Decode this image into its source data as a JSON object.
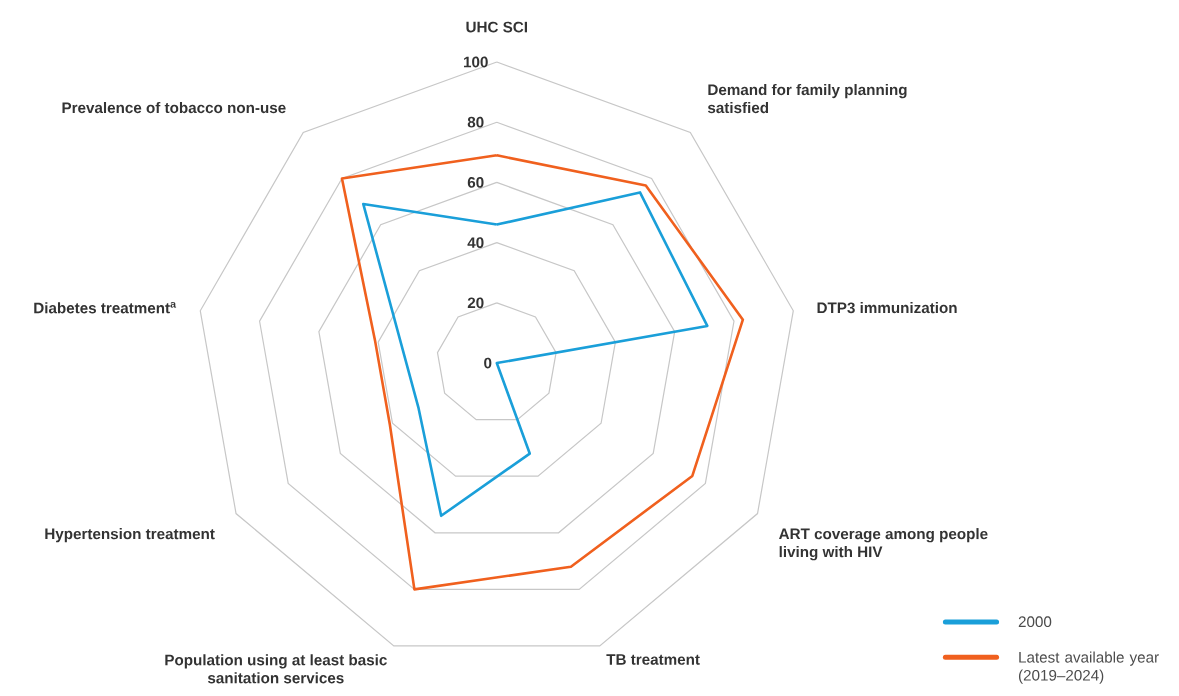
{
  "chart_data": {
    "type": "radar",
    "categories": [
      "UHC SCI",
      "Demand for family planning satisfied",
      "DTP3 immunization",
      "ART coverage among people living with HIV",
      "TB treatment",
      "Population using at least basic sanitation services",
      "Hypertension treatment",
      "Diabetes treatment$^{a}$",
      "Prevalence of tobacco non-use"
    ],
    "series": [
      {
        "name": "2000",
        "color": "#1a9fd9",
        "values": [
          46,
          74,
          71,
          0,
          32,
          54,
          30,
          null,
          69
        ]
      },
      {
        "name": "Latest available year (2019–2024)",
        "color": "#f0601e",
        "values": [
          69,
          77,
          83,
          75,
          72,
          80,
          41,
          41,
          80
        ]
      }
    ],
    "ylim": [
      0,
      100
    ],
    "yticks": [
      0,
      20,
      40,
      60,
      80,
      100
    ],
    "grid": true,
    "legend": "bottom right"
  }
}
